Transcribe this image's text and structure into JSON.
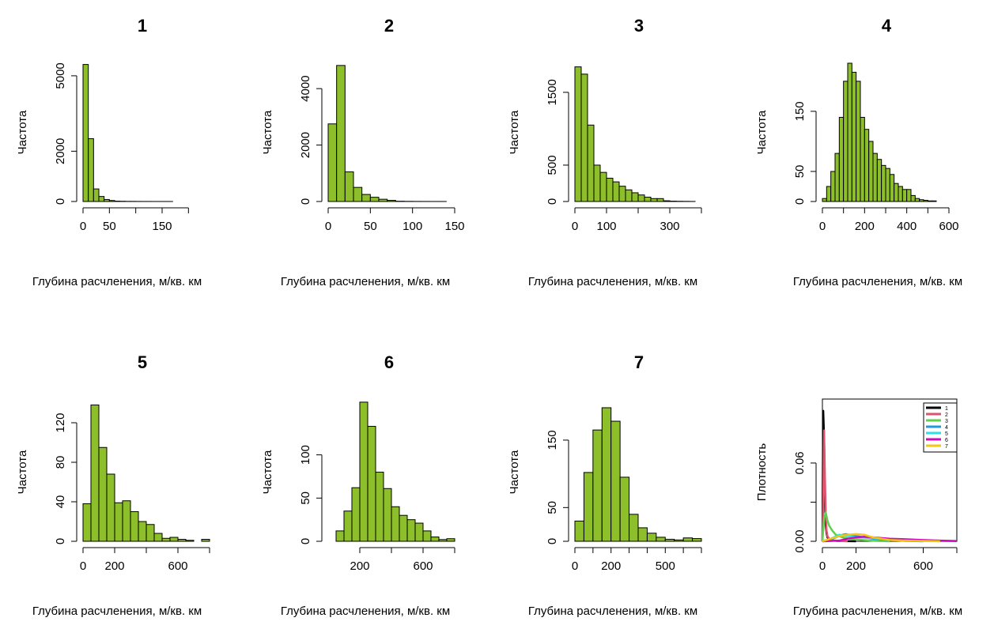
{
  "chart_data": [
    {
      "type": "bar",
      "title": "1",
      "xlabel": "Глубина расчленения, м/кв. км",
      "ylabel": "Частота",
      "xlim": [
        0,
        240
      ],
      "ylim": [
        0,
        5500
      ],
      "xticks": [
        0,
        50,
        100,
        150,
        200
      ],
      "xtick_labels": [
        "0",
        "50",
        "",
        "150",
        ""
      ],
      "yticks": [
        0,
        2000,
        5000
      ],
      "bin_width": 10,
      "bins_start": 0,
      "values": [
        5450,
        2500,
        500,
        200,
        80,
        40,
        15,
        10,
        5,
        5,
        3,
        2,
        2,
        1,
        1,
        1,
        1,
        0,
        0,
        0,
        0,
        0,
        0,
        0
      ]
    },
    {
      "type": "bar",
      "title": "2",
      "xlabel": "Глубина расчленения, м/кв. км",
      "ylabel": "Частота",
      "xlim": [
        0,
        150
      ],
      "ylim": [
        0,
        4900
      ],
      "xticks": [
        0,
        50,
        100,
        150
      ],
      "xtick_labels": [
        "0",
        "50",
        "100",
        "150"
      ],
      "yticks": [
        0,
        2000,
        4000
      ],
      "bin_width": 10,
      "bins_start": 0,
      "values": [
        2750,
        4820,
        1050,
        500,
        250,
        150,
        80,
        40,
        10,
        5,
        3,
        2,
        1,
        1,
        0
      ]
    },
    {
      "type": "bar",
      "title": "3",
      "xlabel": "Глубина расчленения, м/кв. км",
      "ylabel": "Частота",
      "xlim": [
        0,
        400
      ],
      "ylim": [
        0,
        1900
      ],
      "xticks": [
        0,
        100,
        200,
        300,
        400
      ],
      "xtick_labels": [
        "0",
        "100",
        "",
        "300",
        ""
      ],
      "yticks": [
        0,
        500,
        1500
      ],
      "bin_width": 20,
      "bins_start": 0,
      "values": [
        1850,
        1750,
        1050,
        500,
        400,
        320,
        270,
        210,
        160,
        120,
        90,
        60,
        40,
        40,
        10,
        5,
        3,
        2,
        1,
        0
      ]
    },
    {
      "type": "bar",
      "title": "4",
      "xlabel": "Глубина расчленения, м/кв. км",
      "ylabel": "Частота",
      "xlim": [
        0,
        600
      ],
      "ylim": [
        0,
        230
      ],
      "xticks": [
        0,
        100,
        200,
        300,
        400,
        500,
        600
      ],
      "xtick_labels": [
        "0",
        "",
        "200",
        "",
        "400",
        "",
        "600"
      ],
      "yticks": [
        0,
        50,
        150
      ],
      "bin_width": 20,
      "bins_start": 0,
      "values": [
        5,
        25,
        50,
        80,
        140,
        200,
        230,
        215,
        200,
        140,
        120,
        100,
        80,
        70,
        60,
        55,
        45,
        30,
        25,
        20,
        20,
        10,
        5,
        3,
        2,
        1,
        1,
        0,
        0,
        0
      ]
    },
    {
      "type": "bar",
      "title": "5",
      "xlabel": "Глубина расчленения, м/кв. км",
      "ylabel": "Частота",
      "xlim": [
        0,
        800
      ],
      "ylim": [
        0,
        140
      ],
      "xticks": [
        0,
        200,
        400,
        600,
        800
      ],
      "xtick_labels": [
        "0",
        "200",
        "",
        "600",
        ""
      ],
      "yticks": [
        0,
        40,
        80,
        120
      ],
      "bin_width": 50,
      "bins_start": 0,
      "values": [
        38,
        138,
        95,
        68,
        39,
        41,
        30,
        20,
        17,
        8,
        3,
        4,
        2,
        1,
        0,
        2
      ]
    },
    {
      "type": "bar",
      "title": "6",
      "xlabel": "Глубина расчленения, м/кв. км",
      "ylabel": "Частота",
      "xlim": [
        0,
        800
      ],
      "ylim": [
        0,
        160
      ],
      "xticks": [
        200,
        400,
        600,
        800
      ],
      "xtick_labels": [
        "200",
        "",
        "600",
        ""
      ],
      "yticks": [
        0,
        50,
        100
      ],
      "bin_width": 50,
      "bins_start": 50,
      "values": [
        12,
        35,
        62,
        161,
        133,
        80,
        61,
        40,
        30,
        25,
        21,
        12,
        5,
        2,
        3
      ]
    },
    {
      "type": "bar",
      "title": "7",
      "xlabel": "Глубина расчленения, м/кв. км",
      "ylabel": "Частота",
      "xlim": [
        0,
        700
      ],
      "ylim": [
        0,
        205
      ],
      "xticks": [
        0,
        100,
        200,
        300,
        400,
        500,
        600,
        700
      ],
      "xtick_labels": [
        "0",
        "",
        "200",
        "",
        "",
        "500",
        "",
        ""
      ],
      "yticks": [
        0,
        50,
        150
      ],
      "bin_width": 50,
      "bins_start": 0,
      "values": [
        30,
        102,
        165,
        198,
        178,
        95,
        40,
        20,
        12,
        6,
        3,
        2,
        5,
        4
      ]
    },
    {
      "type": "line",
      "title": "",
      "xlabel": "Глубина расчленения, м/кв. км",
      "ylabel": "Плотность",
      "xlim": [
        0,
        800
      ],
      "ylim": [
        0,
        0.106
      ],
      "xticks": [
        0,
        200,
        400,
        600,
        800
      ],
      "xtick_labels": [
        "0",
        "200",
        "",
        "600",
        ""
      ],
      "yticks": [
        0,
        0.03,
        0.06
      ],
      "ytick_labels": [
        "0.00",
        "",
        "0.06"
      ],
      "legend": "top-right",
      "series": [
        {
          "name": "1",
          "color": "#000000",
          "x": [
            0,
            5,
            10,
            15,
            20,
            25,
            30,
            40,
            60,
            100,
            200
          ],
          "y": [
            0.0,
            0.1,
            0.08,
            0.03,
            0.012,
            0.006,
            0.003,
            0.001,
            0.0005,
            0.0002,
            0.0
          ]
        },
        {
          "name": "2",
          "color": "#DF536B",
          "x": [
            0,
            5,
            10,
            15,
            20,
            25,
            30,
            40,
            60,
            100,
            150
          ],
          "y": [
            0.0,
            0.03,
            0.085,
            0.05,
            0.02,
            0.008,
            0.004,
            0.002,
            0.0008,
            0.0002,
            0.0
          ]
        },
        {
          "name": "3",
          "color": "#61D04F",
          "x": [
            0,
            10,
            20,
            30,
            40,
            60,
            80,
            120,
            160,
            240,
            320,
            400
          ],
          "y": [
            0.0,
            0.018,
            0.022,
            0.016,
            0.012,
            0.008,
            0.005,
            0.003,
            0.002,
            0.001,
            0.0003,
            0.0
          ]
        },
        {
          "name": "4",
          "color": "#2297E6",
          "x": [
            0,
            40,
            80,
            120,
            140,
            160,
            200,
            250,
            300,
            400,
            500,
            600
          ],
          "y": [
            0.0,
            0.001,
            0.003,
            0.005,
            0.0055,
            0.005,
            0.004,
            0.003,
            0.002,
            0.001,
            0.0003,
            0.0
          ]
        },
        {
          "name": "5",
          "color": "#28E2E5",
          "x": [
            0,
            50,
            100,
            150,
            200,
            300,
            400,
            500,
            600,
            800
          ],
          "y": [
            0.0,
            0.002,
            0.005,
            0.004,
            0.003,
            0.0025,
            0.0015,
            0.0008,
            0.0003,
            0.0
          ]
        },
        {
          "name": "6",
          "color": "#CD0BBC",
          "x": [
            0,
            100,
            150,
            200,
            250,
            300,
            400,
            500,
            600,
            700,
            800
          ],
          "y": [
            0.0,
            0.0005,
            0.002,
            0.003,
            0.0035,
            0.003,
            0.002,
            0.0015,
            0.001,
            0.0005,
            0.0002
          ]
        },
        {
          "name": "7",
          "color": "#F5C710",
          "x": [
            0,
            50,
            100,
            150,
            200,
            250,
            300,
            400,
            500,
            600,
            700
          ],
          "y": [
            0.0,
            0.002,
            0.004,
            0.005,
            0.0055,
            0.005,
            0.003,
            0.001,
            0.0005,
            0.0002,
            0.0
          ]
        }
      ]
    }
  ],
  "style": {
    "bar_fill": "#8CBF2A",
    "bar_stroke": "#000000"
  }
}
